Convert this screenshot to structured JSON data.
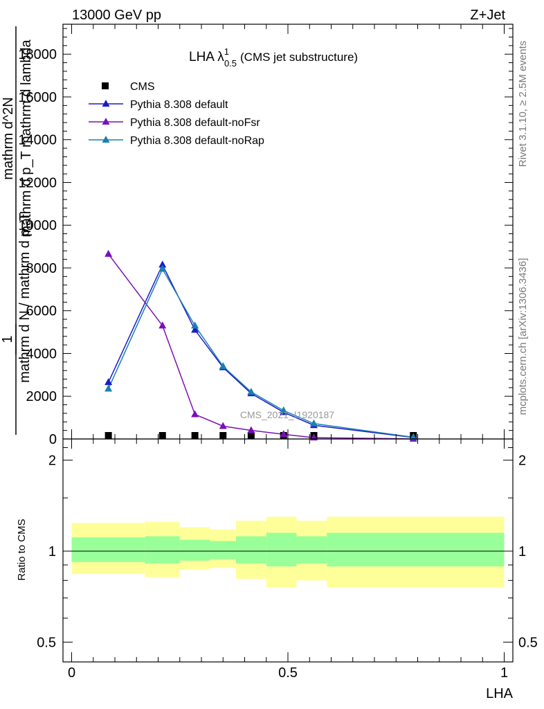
{
  "header": {
    "left": "13000 GeV pp",
    "right": "Z+Jet"
  },
  "side_labels": {
    "rivet": "Rivet 3.1.10, ≥ 2.5M events",
    "mcplots": "mcplots.cern.ch [arXiv:1306.3436]"
  },
  "watermark": "CMS_2021_I1920187",
  "chart_data": [
    {
      "type": "line",
      "title_main": "LHA λ",
      "title_sup": "1",
      "title_sub": "0.5",
      "title_suffix": "(CMS jet substructure)",
      "ylabel_parts": {
        "one": "1",
        "den": "mathrm d N / mathrm d p_T",
        "num_line1": "mathrm d^2N",
        "num_line2": "mathrm d p_T mathrm d lambda"
      },
      "xlim": [
        -0.02,
        1.02
      ],
      "ylim": [
        0,
        19400
      ],
      "y_ticks": [
        0,
        2000,
        4000,
        6000,
        8000,
        10000,
        12000,
        14000,
        16000,
        18000
      ],
      "y_tick_labels": [
        "0",
        "2000",
        "4000",
        "6000",
        "8000",
        "10000",
        "12000",
        "14000",
        "16000",
        "18000"
      ],
      "grid": false,
      "legend_position": "top-left",
      "colors": {
        "cms": "#000000",
        "default": "#1a1acc",
        "noFsr": "#7a0fb8",
        "noRap": "#1a7fb0"
      },
      "series": [
        {
          "name": "CMS",
          "marker": "square",
          "x": [
            0.085,
            0.21,
            0.285,
            0.35,
            0.415,
            0.49,
            0.56,
            0.79
          ],
          "y": [
            0,
            0,
            0,
            0,
            0,
            0,
            0,
            0
          ]
        },
        {
          "name": "Pythia 8.308 default",
          "marker": "triangle",
          "x": [
            0.085,
            0.21,
            0.285,
            0.35,
            0.415,
            0.49,
            0.56,
            0.79
          ],
          "y": [
            2650,
            8150,
            5100,
            3350,
            2130,
            1250,
            640,
            70
          ]
        },
        {
          "name": "Pythia 8.308 default-noFsr",
          "marker": "triangle",
          "x": [
            0.085,
            0.21,
            0.285,
            0.35,
            0.415,
            0.49,
            0.56,
            0.79
          ],
          "y": [
            8650,
            5300,
            1150,
            600,
            400,
            220,
            60,
            5
          ]
        },
        {
          "name": "Pythia 8.308 default-noRap",
          "marker": "triangle",
          "x": [
            0.085,
            0.21,
            0.285,
            0.35,
            0.415,
            0.49,
            0.56,
            0.79
          ],
          "y": [
            2350,
            7950,
            5300,
            3400,
            2200,
            1330,
            720,
            80
          ]
        }
      ]
    },
    {
      "type": "area",
      "ylabel": "Ratio to CMS",
      "xlabel": "LHA",
      "log_y": true,
      "ylim": [
        0.43,
        2.35
      ],
      "y_ticks": [
        0.5,
        1,
        2
      ],
      "y_tick_labels": [
        "0.5",
        "1",
        "2"
      ],
      "x_ticks": [
        0,
        0.5,
        1
      ],
      "x_tick_labels": [
        "0",
        "0.5",
        "1"
      ],
      "colors": {
        "inner_band": "#99ff99",
        "outer_band": "#ffff99",
        "ref_line": "#000000"
      },
      "bins": [
        {
          "x0": 0.0,
          "x1": 0.17,
          "in_lo": 0.92,
          "in_hi": 1.11,
          "out_lo": 0.84,
          "out_hi": 1.24
        },
        {
          "x0": 0.17,
          "x1": 0.25,
          "in_lo": 0.91,
          "in_hi": 1.12,
          "out_lo": 0.82,
          "out_hi": 1.25
        },
        {
          "x0": 0.25,
          "x1": 0.32,
          "in_lo": 0.93,
          "in_hi": 1.09,
          "out_lo": 0.87,
          "out_hi": 1.2
        },
        {
          "x0": 0.32,
          "x1": 0.38,
          "in_lo": 0.94,
          "in_hi": 1.08,
          "out_lo": 0.88,
          "out_hi": 1.18
        },
        {
          "x0": 0.38,
          "x1": 0.45,
          "in_lo": 0.91,
          "in_hi": 1.12,
          "out_lo": 0.81,
          "out_hi": 1.26
        },
        {
          "x0": 0.45,
          "x1": 0.52,
          "in_lo": 0.89,
          "in_hi": 1.15,
          "out_lo": 0.76,
          "out_hi": 1.3
        },
        {
          "x0": 0.52,
          "x1": 0.59,
          "in_lo": 0.91,
          "in_hi": 1.12,
          "out_lo": 0.8,
          "out_hi": 1.26
        },
        {
          "x0": 0.59,
          "x1": 1.0,
          "in_lo": 0.89,
          "in_hi": 1.15,
          "out_lo": 0.76,
          "out_hi": 1.3
        }
      ],
      "ref_value": 1
    }
  ]
}
